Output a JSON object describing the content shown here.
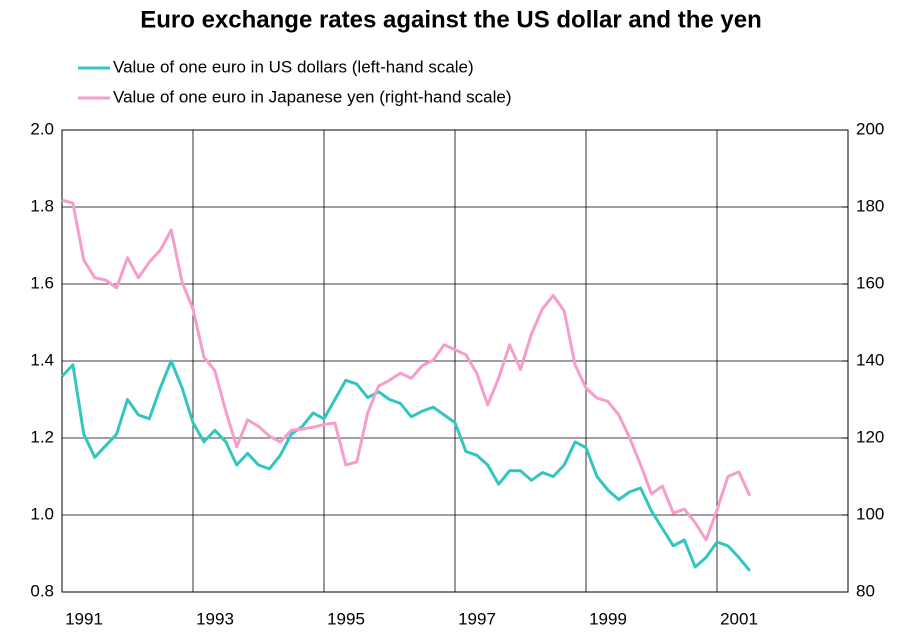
{
  "chart_data": {
    "type": "line",
    "title": "Euro exchange rates against the US dollar and the yen",
    "x": [
      1991,
      1991.167,
      1991.333,
      1991.5,
      1991.667,
      1991.833,
      1992,
      1992.167,
      1992.333,
      1992.5,
      1992.667,
      1992.833,
      1993,
      1993.167,
      1993.333,
      1993.5,
      1993.667,
      1993.833,
      1994,
      1994.167,
      1994.333,
      1994.5,
      1994.667,
      1994.833,
      1995,
      1995.167,
      1995.333,
      1995.5,
      1995.667,
      1995.833,
      1996,
      1996.167,
      1996.333,
      1996.5,
      1996.667,
      1996.833,
      1997,
      1997.167,
      1997.333,
      1997.5,
      1997.667,
      1997.833,
      1998,
      1998.167,
      1998.333,
      1998.5,
      1998.667,
      1998.833,
      1999,
      1999.167,
      1999.333,
      1999.5,
      1999.667,
      1999.833,
      2000,
      2000.167,
      2000.333,
      2000.5,
      2000.667,
      2000.833,
      2001,
      2001.167,
      2001.333,
      2001.5
    ],
    "series": [
      {
        "name": "Value of one euro in US dollars (left-hand scale)",
        "color": "#33c6c0",
        "axis": "y",
        "values": [
          1.36,
          1.39,
          1.21,
          1.15,
          1.18,
          1.21,
          1.3,
          1.26,
          1.25,
          1.33,
          1.4,
          1.33,
          1.24,
          1.19,
          1.22,
          1.19,
          1.13,
          1.16,
          1.13,
          1.12,
          1.155,
          1.21,
          1.23,
          1.265,
          1.25,
          1.3,
          1.35,
          1.34,
          1.305,
          1.32,
          1.3,
          1.29,
          1.255,
          1.27,
          1.28,
          1.26,
          1.24,
          1.165,
          1.155,
          1.13,
          1.08,
          1.115,
          1.115,
          1.09,
          1.11,
          1.1,
          1.13,
          1.19,
          1.175,
          1.1,
          1.065,
          1.04,
          1.06,
          1.07,
          1.01,
          0.965,
          0.92,
          0.935,
          0.865,
          0.89,
          0.93,
          0.92,
          0.89,
          0.855
        ]
      },
      {
        "name": "Value of one euro in Japanese yen (right-hand scale)",
        "color": "#f59ecb",
        "axis": "y2",
        "values": [
          181.8,
          181.0,
          166.2,
          161.6,
          161.0,
          159.0,
          166.8,
          161.6,
          165.7,
          168.8,
          174,
          160.5,
          153.5,
          141,
          137.5,
          127,
          117.7,
          124.7,
          123,
          120.5,
          119,
          122,
          122.3,
          122.8,
          123.5,
          123.9,
          113,
          113.8,
          126.5,
          133.5,
          135,
          136.8,
          135.5,
          138.8,
          140.2,
          144.2,
          142.9,
          141.6,
          136.8,
          128.6,
          135.6,
          144.2,
          137.8,
          147,
          153.5,
          157,
          153,
          139,
          133,
          130.4,
          129.5,
          126,
          120,
          113,
          105.5,
          107.5,
          100.5,
          101.5,
          98,
          93.5,
          101.3,
          110,
          111.2,
          105
        ]
      }
    ],
    "xlim": [
      1991,
      2003
    ],
    "xticks": [
      1991,
      1993,
      1995,
      1997,
      1999,
      2001
    ],
    "ylim": [
      0.8,
      2.0
    ],
    "yticks": [
      0.8,
      {
        "value": 1.0,
        "label": "1.0"
      },
      1.2,
      1.4,
      1.6,
      1.8,
      {
        "value": 2.0,
        "label": "2.0"
      }
    ],
    "y2lim": [
      80,
      200
    ],
    "y2ticks": [
      80,
      100,
      120,
      140,
      160,
      180,
      200
    ],
    "grid": true
  }
}
